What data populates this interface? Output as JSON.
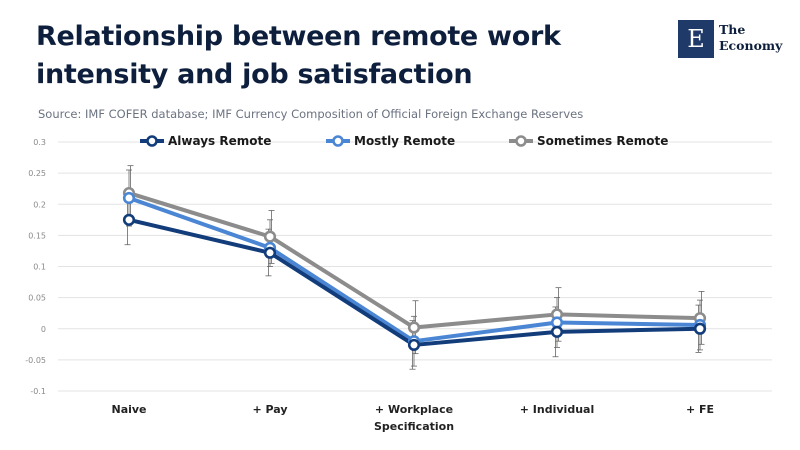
{
  "header": {
    "title": "Relationship between remote work intensity and job satisfaction",
    "source": "Source: IMF COFER database; IMF Currency Composition of Official Foreign Exchange Reserves"
  },
  "logo": {
    "mark": "E",
    "line1": "The",
    "line2": "Economy"
  },
  "chart_data": {
    "type": "line",
    "categories": [
      "Naive",
      "+ Pay",
      "+ Workplace Specification",
      "+ Individual",
      "+ FE"
    ],
    "category_lines": [
      [
        "Naive"
      ],
      [
        "+ Pay"
      ],
      [
        "+ Workplace",
        "Specification"
      ],
      [
        "+ Individual"
      ],
      [
        "+ FE"
      ]
    ],
    "ylim": [
      -0.1,
      0.3
    ],
    "yticks": [
      -0.1,
      -0.05,
      0,
      0.05,
      0.1,
      0.15,
      0.2,
      0.25,
      0.3
    ],
    "ytick_labels": [
      "-0.1",
      "-0.05",
      "0",
      "0.05",
      "0.1",
      "0.15",
      "0.2",
      "0.25",
      "0.3"
    ],
    "grid": true,
    "legend": "top",
    "series": [
      {
        "name": "Always Remote",
        "color": "#123d7a",
        "values": [
          0.175,
          0.122,
          -0.026,
          -0.005,
          0.0
        ],
        "err_low": [
          0.135,
          0.085,
          -0.065,
          -0.045,
          -0.038
        ],
        "err_high": [
          0.215,
          0.16,
          0.013,
          0.035,
          0.038
        ]
      },
      {
        "name": "Mostly Remote",
        "color": "#4a86d4",
        "values": [
          0.21,
          0.13,
          -0.02,
          0.01,
          0.006
        ],
        "err_low": [
          0.165,
          0.1,
          -0.06,
          -0.03,
          -0.034
        ],
        "err_high": [
          0.255,
          0.175,
          0.02,
          0.05,
          0.046
        ]
      },
      {
        "name": "Sometimes Remote",
        "color": "#8c8c8c",
        "values": [
          0.218,
          0.148,
          0.002,
          0.023,
          0.017
        ],
        "err_low": [
          0.175,
          0.105,
          -0.04,
          -0.02,
          -0.025
        ],
        "err_high": [
          0.262,
          0.19,
          0.045,
          0.066,
          0.06
        ]
      }
    ]
  }
}
